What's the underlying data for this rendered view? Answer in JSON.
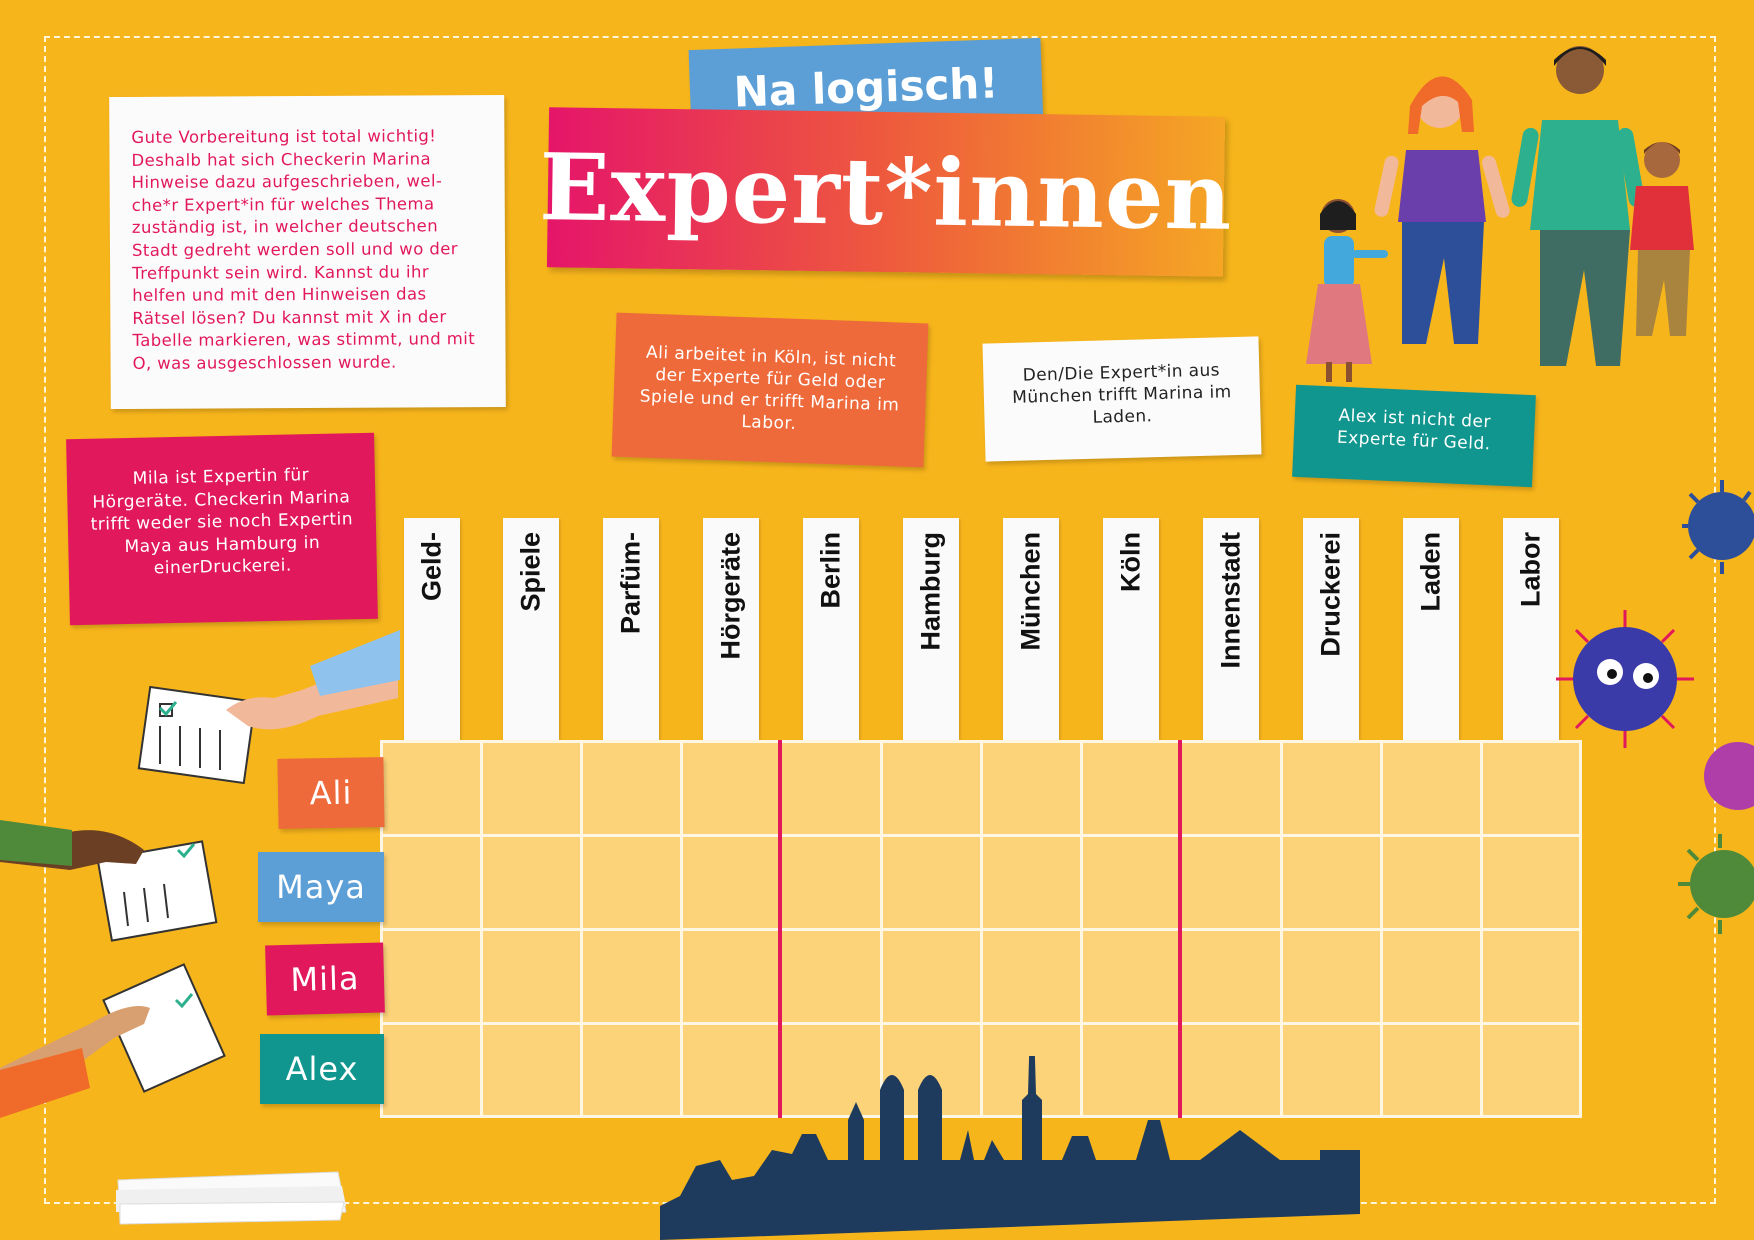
{
  "badge": "Na logisch!",
  "title": "Expert*innen",
  "intro": "Gute Vorbereitung ist total wichtig! Deshalb hat sich Checkerin Marina Hinweise dazu aufgeschrieben, wel-che*r Expert*in für welches Thema zuständig ist, in welcher deutschen Stadt gedreht werden soll und wo der Treffpunkt sein wird. Kannst du ihr helfen und mit den Hinweisen das Rätsel lösen? Du kannst mit X in der Tabelle markieren, was stimmt, und mit O, was ausgeschlossen wurde.",
  "clues": {
    "ali": "Ali arbeitet in Köln, ist nicht der Experte für Geld oder Spiele und er trifft Marina im Labor.",
    "muenchen": "Den/Die Expert*in aus München trifft Marina im Laden.",
    "alex": "Alex ist nicht der Experte für Geld.",
    "mila": "Mila ist Expertin für Hörgeräte. Checkerin Marina trifft weder sie noch Expertin Maya aus Hamburg in einerDruckerei."
  },
  "columns": [
    "Geld-",
    "Spiele",
    "Parfüm-",
    "Hörgeräte",
    "Berlin",
    "Hamburg",
    "München",
    "Köln",
    "Innenstadt",
    "Druckerei",
    "Laden",
    "Labor"
  ],
  "rows": [
    "Ali",
    "Maya",
    "Mila",
    "Alex"
  ],
  "colors": {
    "background": "#f7b51c",
    "pink": "#e2185d",
    "orange": "#ee6a3b",
    "blue": "#5b9fd6",
    "teal": "#10968f",
    "grid": "#fdd37a"
  }
}
